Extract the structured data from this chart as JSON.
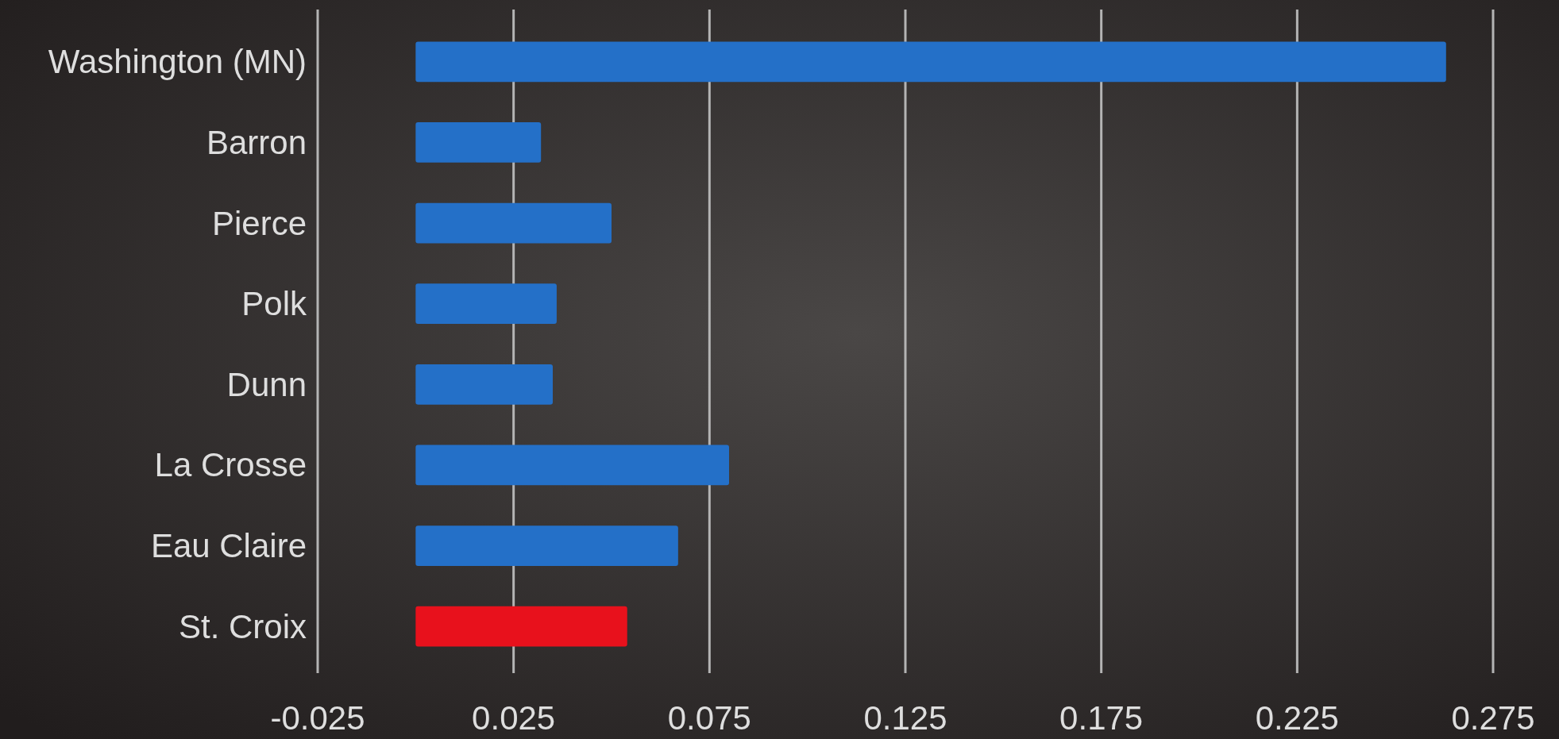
{
  "chart_data": {
    "type": "bar",
    "orientation": "horizontal",
    "categories": [
      "Washington (MN)",
      "Barron",
      "Pierce",
      "Polk",
      "Dunn",
      "La Crosse",
      "Eau Claire",
      "St. Croix"
    ],
    "values": [
      0.263,
      0.032,
      0.05,
      0.036,
      0.035,
      0.08,
      0.067,
      0.054
    ],
    "colors": [
      "#2470c8",
      "#2470c8",
      "#2470c8",
      "#2470c8",
      "#2470c8",
      "#2470c8",
      "#2470c8",
      "#e8111c"
    ],
    "xlim": [
      -0.025,
      0.275
    ],
    "xticks": [
      -0.025,
      0.025,
      0.075,
      0.125,
      0.175,
      0.225,
      0.275
    ],
    "grid": "x"
  }
}
